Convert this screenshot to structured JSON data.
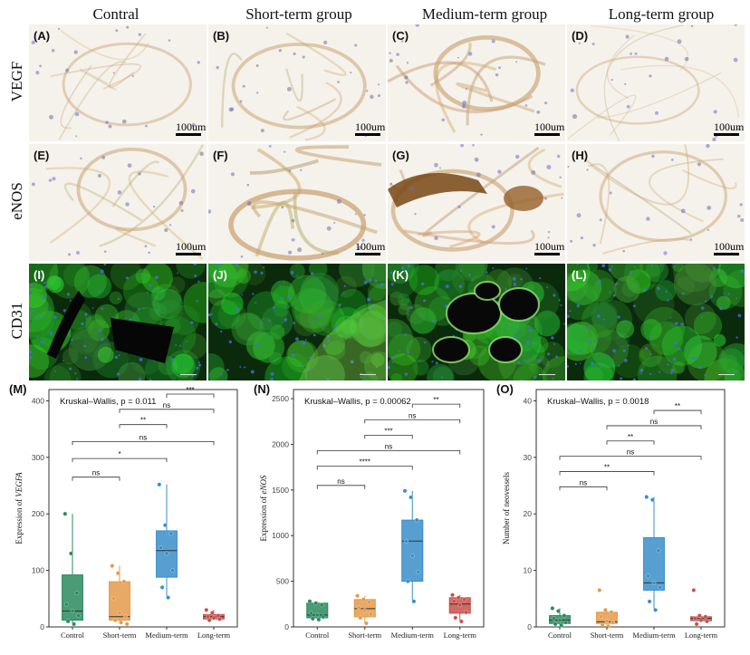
{
  "columns": [
    "Contral",
    "Short-term group",
    "Medium-term group",
    "Long-term group"
  ],
  "rows": [
    "VEGF",
    "eNOS",
    "CD31"
  ],
  "panel_letters": [
    "(A)",
    "(B)",
    "(C)",
    "(D)",
    "(E)",
    "(F)",
    "(G)",
    "(H)",
    "(I)",
    "(J)",
    "(K)",
    "(L)"
  ],
  "scale_text": "100um",
  "colors": {
    "control": "#2a8a5e",
    "short": "#e39a4a",
    "medium": "#3a8ec8",
    "long": "#c8504a",
    "ihc_bg": "#f5f2ec",
    "if_bg": "#0b2a0c"
  },
  "chart_data": [
    {
      "type": "box",
      "panel": "(M)",
      "test_label": "Kruskal–Wallis, p = 0.011",
      "ylabel_prefix": "Expression of ",
      "ylabel_italic": "VEGFA",
      "xlabel": "",
      "ylim": [
        0,
        420
      ],
      "yticks": [
        0,
        100,
        200,
        300,
        400
      ],
      "categories": [
        "Control",
        "Short-term",
        "Medium-term",
        "Long-term"
      ],
      "series": [
        {
          "category": "Control",
          "min": 5,
          "q1": 12,
          "median": 28,
          "q3": 92,
          "max": 200,
          "points": [
            200,
            130,
            60,
            40,
            28,
            20,
            10,
            5
          ]
        },
        {
          "category": "Short-term",
          "min": 5,
          "q1": 12,
          "median": 18,
          "q3": 80,
          "max": 108,
          "points": [
            108,
            95,
            80,
            50,
            25,
            18,
            12,
            8,
            5
          ]
        },
        {
          "category": "Medium-term",
          "min": 52,
          "q1": 88,
          "median": 135,
          "q3": 170,
          "max": 252,
          "points": [
            252,
            180,
            165,
            140,
            130,
            100,
            70,
            52
          ]
        },
        {
          "category": "Long-term",
          "min": 12,
          "q1": 14,
          "median": 18,
          "q3": 22,
          "max": 30,
          "points": [
            30,
            25,
            20,
            18,
            16,
            14,
            12
          ]
        }
      ],
      "comparisons": [
        {
          "from": 0,
          "to": 1,
          "y": 265,
          "label": "ns"
        },
        {
          "from": 0,
          "to": 2,
          "y": 298,
          "label": "*"
        },
        {
          "from": 0,
          "to": 3,
          "y": 328,
          "label": "ns"
        },
        {
          "from": 1,
          "to": 2,
          "y": 358,
          "label": "**"
        },
        {
          "from": 1,
          "to": 3,
          "y": 385,
          "label": "ns"
        },
        {
          "from": 2,
          "to": 3,
          "y": 412,
          "label": "***"
        }
      ]
    },
    {
      "type": "box",
      "panel": "(N)",
      "test_label": "Kruskal–Wallis, p = 0.00062",
      "ylabel_prefix": "Expression of ",
      "ylabel_italic": "eNOS",
      "xlabel": "",
      "ylim": [
        0,
        2600
      ],
      "yticks": [
        0,
        500,
        1000,
        1500,
        2000,
        2500
      ],
      "categories": [
        "Control",
        "Short-term",
        "Medium-term",
        "Long-term"
      ],
      "series": [
        {
          "category": "Control",
          "min": 80,
          "q1": 100,
          "median": 130,
          "q3": 260,
          "max": 280,
          "points": [
            280,
            260,
            240,
            150,
            130,
            110,
            90,
            80
          ]
        },
        {
          "category": "Short-term",
          "min": 40,
          "q1": 110,
          "median": 200,
          "q3": 300,
          "max": 340,
          "points": [
            340,
            300,
            270,
            210,
            180,
            140,
            100,
            40
          ]
        },
        {
          "category": "Medium-term",
          "min": 280,
          "q1": 500,
          "median": 940,
          "q3": 1170,
          "max": 1490,
          "points": [
            1490,
            1420,
            1170,
            940,
            780,
            600,
            500,
            280
          ]
        },
        {
          "category": "Long-term",
          "min": 60,
          "q1": 150,
          "median": 250,
          "q3": 320,
          "max": 350,
          "points": [
            350,
            320,
            300,
            280,
            240,
            160,
            100,
            60
          ]
        }
      ],
      "comparisons": [
        {
          "from": 0,
          "to": 1,
          "y": 1550,
          "label": "ns"
        },
        {
          "from": 0,
          "to": 2,
          "y": 1760,
          "label": "****"
        },
        {
          "from": 0,
          "to": 3,
          "y": 1930,
          "label": "ns"
        },
        {
          "from": 1,
          "to": 2,
          "y": 2100,
          "label": "***"
        },
        {
          "from": 1,
          "to": 3,
          "y": 2270,
          "label": "ns"
        },
        {
          "from": 2,
          "to": 3,
          "y": 2440,
          "label": "**"
        }
      ]
    },
    {
      "type": "box",
      "panel": "(O)",
      "test_label": "Kruskal–Wallis, p = 0.0018",
      "ylabel_prefix": "Number of neovessels",
      "ylabel_italic": "",
      "xlabel": "",
      "ylim": [
        0,
        42
      ],
      "yticks": [
        0,
        10,
        20,
        30,
        40
      ],
      "categories": [
        "Control",
        "Short-term",
        "Medium-term",
        "Long-term"
      ],
      "series": [
        {
          "category": "Control",
          "min": 0.3,
          "q1": 0.6,
          "median": 1.2,
          "q3": 2.0,
          "max": 3.3,
          "points": [
            3.3,
            2.8,
            2.0,
            1.5,
            1.2,
            0.8,
            0.5,
            0.3
          ]
        },
        {
          "category": "Short-term",
          "min": 0.1,
          "q1": 0.6,
          "median": 0.9,
          "q3": 2.6,
          "max": 3.0,
          "points": [
            6.5,
            3.0,
            2.6,
            1.8,
            1.0,
            0.8,
            0.4,
            0.1
          ]
        },
        {
          "category": "Medium-term",
          "min": 3.0,
          "q1": 6.5,
          "median": 7.8,
          "q3": 15.8,
          "max": 23.0,
          "points": [
            23.0,
            22.5,
            13.5,
            9.0,
            7.8,
            7.0,
            4.5,
            3.0
          ]
        },
        {
          "category": "Long-term",
          "min": 0.9,
          "q1": 1.1,
          "median": 1.5,
          "q3": 1.8,
          "max": 2.0,
          "points": [
            6.5,
            2.0,
            1.8,
            1.5,
            1.2,
            1.0,
            0.5
          ]
        }
      ],
      "comparisons": [
        {
          "from": 0,
          "to": 1,
          "y": 24.8,
          "label": "ns"
        },
        {
          "from": 0,
          "to": 2,
          "y": 27.5,
          "label": "**"
        },
        {
          "from": 0,
          "to": 3,
          "y": 30.2,
          "label": "ns"
        },
        {
          "from": 1,
          "to": 2,
          "y": 32.9,
          "label": "**"
        },
        {
          "from": 1,
          "to": 3,
          "y": 35.6,
          "label": "ns"
        },
        {
          "from": 2,
          "to": 3,
          "y": 38.3,
          "label": "**"
        }
      ]
    }
  ]
}
